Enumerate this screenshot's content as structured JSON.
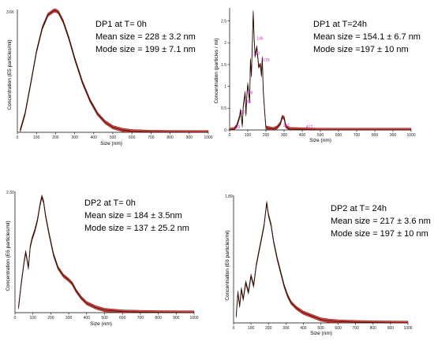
{
  "chart_data": [
    {
      "type": "area",
      "ylim_label": "3.66",
      "xlabel": "Size (nm)",
      "ylabel": "Concentration (E5 particles/ml)",
      "xlim": [
        0,
        1000
      ],
      "ylim": [
        0,
        3.66
      ],
      "x_ticks": [
        "0",
        "100",
        "200",
        "300",
        "400",
        "500",
        "600",
        "700",
        "800",
        "900",
        "1000"
      ],
      "annotation": [
        "DP1 at T= 0h",
        "Mean size = 228 ± 3.2 nm",
        "Mode size = 199 ± 7.1 nm"
      ],
      "peak_labels": [],
      "series": [
        {
          "x": [
            15,
            40,
            70,
            100,
            130,
            160,
            190,
            200,
            215,
            240,
            270,
            300,
            340,
            380,
            420,
            460,
            500,
            550,
            600,
            700,
            800,
            1000
          ],
          "y": [
            0.05,
            0.55,
            1.45,
            2.4,
            3.1,
            3.5,
            3.62,
            3.63,
            3.58,
            3.3,
            2.8,
            2.2,
            1.5,
            0.95,
            0.55,
            0.3,
            0.15,
            0.07,
            0.03,
            0.01,
            0.005,
            0
          ]
        }
      ]
    },
    {
      "type": "area",
      "ylim_label": "",
      "xlabel": "Size (nm)",
      "ylabel": "Concentration (particles / ml)",
      "xlim": [
        0,
        1000
      ],
      "ylim": [
        0,
        2.8
      ],
      "y_ticks": [
        "0",
        "0.5",
        "1",
        "1.5",
        "2",
        "2.5"
      ],
      "x_ticks": [
        "0",
        "100",
        "200",
        "300",
        "400",
        "500",
        "600",
        "700",
        "800",
        "900",
        "1000"
      ],
      "annotation": [
        "DP1 at T=24h",
        "Mean size = 154.1 ± 6.7 nm",
        "Mode size =197 ± 10 nm"
      ],
      "peak_labels": [
        "29",
        "57",
        "88",
        "99",
        "127",
        "145",
        "179",
        "291",
        "417"
      ],
      "peak_label_x": [
        29,
        57,
        88,
        99,
        127,
        145,
        179,
        291,
        417
      ],
      "peak_label_y": [
        0.02,
        0.35,
        0.6,
        0.8,
        1.7,
        2.05,
        1.55,
        0.05,
        0.02
      ],
      "series": [
        {
          "x": [
            0,
            25,
            40,
            55,
            60,
            70,
            75,
            85,
            90,
            95,
            100,
            110,
            115,
            120,
            125,
            130,
            135,
            140,
            150,
            160,
            170,
            175,
            180,
            185,
            195,
            200,
            240,
            260,
            280,
            290,
            300,
            310,
            330,
            400,
            500,
            1000
          ],
          "y": [
            0,
            0.02,
            0.1,
            0.3,
            0.45,
            0.1,
            0.55,
            0.85,
            0.35,
            0.8,
            1.05,
            0.65,
            1.6,
            1.25,
            2.0,
            2.7,
            2.1,
            1.7,
            1.9,
            1.45,
            1.5,
            1.25,
            1.65,
            0.9,
            0.3,
            0.05,
            0.02,
            0.05,
            0.15,
            0.3,
            0.28,
            0.08,
            0.02,
            0.01,
            0,
            0
          ]
        }
      ]
    },
    {
      "type": "area",
      "ylim_label": "2.30",
      "xlabel": "Size (nm)",
      "ylabel": "Concentration (E6 particles/ml)",
      "xlim": [
        0,
        1000
      ],
      "ylim": [
        0,
        2.3
      ],
      "x_ticks": [
        "0",
        "100",
        "200",
        "300",
        "400",
        "500",
        "600",
        "700",
        "800",
        "900",
        "1000"
      ],
      "annotation": [
        "DP2 at T= 0h",
        "Mean size = 184 ± 3.5nm",
        "Mode size = 137 ± 25.2 nm"
      ],
      "peak_labels": [],
      "series": [
        {
          "x": [
            20,
            35,
            50,
            60,
            75,
            85,
            95,
            110,
            125,
            140,
            150,
            160,
            170,
            190,
            215,
            240,
            270,
            300,
            320,
            340,
            370,
            400,
            450,
            500,
            600,
            700,
            800,
            1000
          ],
          "y": [
            0.1,
            0.55,
            0.95,
            1.15,
            0.85,
            1.25,
            1.4,
            1.55,
            1.75,
            2.05,
            2.2,
            2.1,
            1.85,
            1.5,
            1.1,
            0.85,
            0.7,
            0.62,
            0.55,
            0.42,
            0.28,
            0.18,
            0.1,
            0.05,
            0.02,
            0.01,
            0.005,
            0
          ]
        }
      ]
    },
    {
      "type": "area",
      "ylim_label": "1.89",
      "xlabel": "Size (nm)",
      "ylabel": "Concentration (E6 particles/ml)",
      "xlim": [
        0,
        1000
      ],
      "ylim": [
        0,
        1.89
      ],
      "x_ticks": [
        "0",
        "100",
        "200",
        "300",
        "400",
        "500",
        "600",
        "700",
        "800",
        "900",
        "1000"
      ],
      "annotation": [
        "DP2 at T= 24h",
        "Mean size = 217 ± 3.6 nm",
        "Mode size = 197 ± 10 nm"
      ],
      "peak_labels": [],
      "series": [
        {
          "x": [
            15,
            25,
            35,
            45,
            55,
            70,
            85,
            100,
            115,
            130,
            145,
            160,
            175,
            190,
            200,
            215,
            230,
            250,
            270,
            290,
            310,
            330,
            360,
            400,
            450,
            500,
            550,
            600,
            700,
            800,
            1000
          ],
          "y": [
            0.1,
            0.45,
            0.25,
            0.5,
            0.35,
            0.6,
            0.45,
            0.7,
            0.55,
            0.85,
            1.05,
            1.25,
            1.45,
            1.78,
            1.6,
            1.45,
            1.2,
            0.95,
            0.75,
            0.55,
            0.4,
            0.3,
            0.22,
            0.15,
            0.1,
            0.05,
            0.03,
            0.02,
            0.01,
            0.005,
            0
          ]
        }
      ]
    }
  ]
}
